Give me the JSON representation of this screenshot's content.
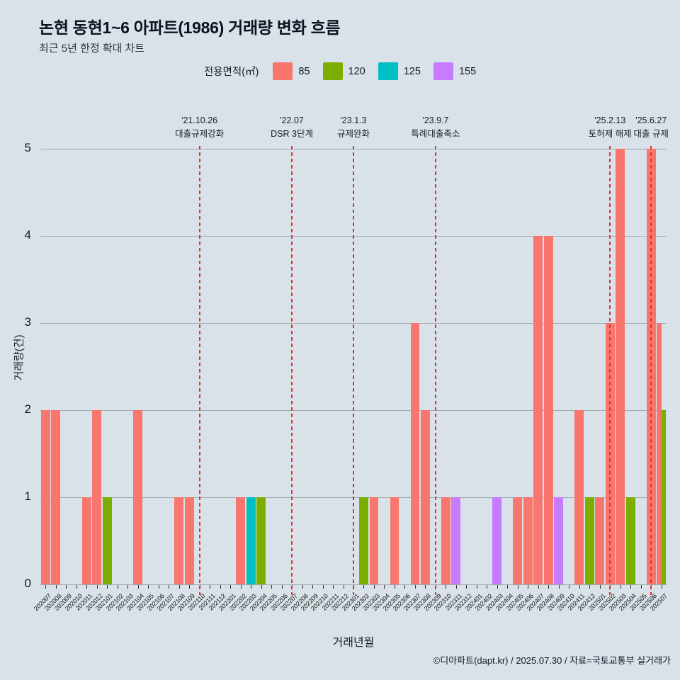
{
  "title": "논현 동현1~6 아파트(1986) 거래량 변화 흐름",
  "subtitle": "최근 5년 한정 확대 차트",
  "legend": {
    "label": "전용면적(㎡)",
    "items": [
      {
        "label": "85",
        "color": "#F8766D"
      },
      {
        "label": "120",
        "color": "#7CAE00"
      },
      {
        "label": "125",
        "color": "#00BFC4"
      },
      {
        "label": "155",
        "color": "#C77CFF"
      }
    ]
  },
  "chart_data": {
    "type": "bar",
    "title": "논현 동현1~6 아파트(1986) 거래량 변화 흐름",
    "xlabel": "거래년월",
    "ylabel": "거래량(건)",
    "ylim": [
      0,
      5
    ],
    "yticks": [
      0,
      1,
      2,
      3,
      4,
      5
    ],
    "grid": true,
    "legend_position": "top",
    "categories": [
      "202007",
      "202008",
      "202009",
      "202010",
      "202011",
      "202012",
      "202101",
      "202102",
      "202103",
      "202104",
      "202105",
      "202106",
      "202107",
      "202108",
      "202109",
      "202110",
      "202111",
      "202112",
      "202201",
      "202202",
      "202203",
      "202204",
      "202205",
      "202206",
      "202207",
      "202208",
      "202209",
      "202210",
      "202211",
      "202212",
      "202301",
      "202302",
      "202303",
      "202304",
      "202305",
      "202306",
      "202307",
      "202308",
      "202309",
      "202310",
      "202311",
      "202312",
      "202401",
      "202402",
      "202403",
      "202404",
      "202405",
      "202406",
      "202407",
      "202408",
      "202409",
      "202410",
      "202411",
      "202412",
      "202501",
      "202502",
      "202503",
      "202504",
      "202505",
      "202506",
      "202507"
    ],
    "bars": [
      {
        "month": "202007",
        "area": "85",
        "value": 2
      },
      {
        "month": "202008",
        "area": "85",
        "value": 2
      },
      {
        "month": "202011",
        "area": "85",
        "value": 1
      },
      {
        "month": "202012",
        "area": "85",
        "value": 2
      },
      {
        "month": "202101",
        "area": "120",
        "value": 1
      },
      {
        "month": "202104",
        "area": "85",
        "value": 2
      },
      {
        "month": "202108",
        "area": "85",
        "value": 1
      },
      {
        "month": "202109",
        "area": "85",
        "value": 1
      },
      {
        "month": "202202",
        "area": "85",
        "value": 1
      },
      {
        "month": "202203",
        "area": "125",
        "value": 1
      },
      {
        "month": "202204",
        "area": "120",
        "value": 1
      },
      {
        "month": "202302",
        "area": "120",
        "value": 1
      },
      {
        "month": "202303",
        "area": "85",
        "value": 1
      },
      {
        "month": "202305",
        "area": "85",
        "value": 1
      },
      {
        "month": "202307",
        "area": "85",
        "value": 3
      },
      {
        "month": "202308",
        "area": "85",
        "value": 2
      },
      {
        "month": "202310",
        "area": "85",
        "value": 1
      },
      {
        "month": "202311",
        "area": "155",
        "value": 1
      },
      {
        "month": "202403",
        "area": "155",
        "value": 1
      },
      {
        "month": "202405",
        "area": "85",
        "value": 1
      },
      {
        "month": "202406",
        "area": "85",
        "value": 1
      },
      {
        "month": "202407",
        "area": "85",
        "value": 4
      },
      {
        "month": "202408",
        "area": "85",
        "value": 4
      },
      {
        "month": "202409",
        "area": "155",
        "value": 1
      },
      {
        "month": "202411",
        "area": "85",
        "value": 2
      },
      {
        "month": "202412",
        "area": "120",
        "value": 1
      },
      {
        "month": "202501",
        "area": "85",
        "value": 1
      },
      {
        "month": "202502",
        "area": "85",
        "value": 3
      },
      {
        "month": "202503",
        "area": "85",
        "value": 5
      },
      {
        "month": "202504",
        "area": "120",
        "value": 1
      },
      {
        "month": "202506",
        "area": "85",
        "value": 5
      },
      {
        "month": "202507",
        "area": "85",
        "value": 3
      },
      {
        "month": "202507",
        "area": "120",
        "value": 2
      }
    ],
    "events": [
      {
        "month": "202110",
        "date": "'21.10.26",
        "label": "대출규제강화"
      },
      {
        "month": "202207",
        "date": "'22.07",
        "label": "DSR 3단계"
      },
      {
        "month": "202301",
        "date": "'23.1.3",
        "label": "규제완화"
      },
      {
        "month": "202309",
        "date": "'23.9.7",
        "label": "특례대출축소"
      },
      {
        "month": "202502",
        "date": "'25.2.13",
        "label": "토허제 해제"
      },
      {
        "month": "202506",
        "date": "'25.6.27",
        "label": "대출 규제"
      }
    ],
    "event_line_color": "#e8302a"
  },
  "footer": {
    "caption": "©디아파트(dapt.kr) / 2025.07.30 / 자료=국토교통부 실거래가"
  }
}
